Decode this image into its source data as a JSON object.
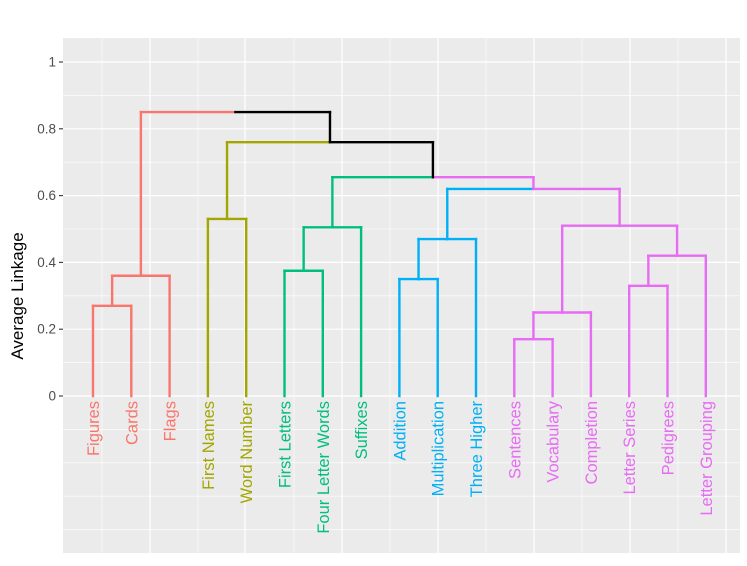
{
  "chart_data": {
    "type": "dendrogram",
    "title": "",
    "xlabel": "",
    "ylabel": "Average Linkage",
    "ylim": [
      -0.5,
      1.07
    ],
    "yticks": [
      0,
      0.2,
      0.4,
      0.6,
      0.8,
      1
    ],
    "ytick_labels": [
      "0",
      "0.2",
      "0.4",
      "0.6",
      "0.8",
      "1"
    ],
    "leaves": [
      {
        "label": "Figures",
        "cluster": 1
      },
      {
        "label": "Cards",
        "cluster": 1
      },
      {
        "label": "Flags",
        "cluster": 1
      },
      {
        "label": "First Names",
        "cluster": 2
      },
      {
        "label": "Word Number",
        "cluster": 2
      },
      {
        "label": "First Letters",
        "cluster": 3
      },
      {
        "label": "Four Letter Words",
        "cluster": 3
      },
      {
        "label": "Suffixes",
        "cluster": 3
      },
      {
        "label": "Addition",
        "cluster": 4
      },
      {
        "label": "Multiplication",
        "cluster": 4
      },
      {
        "label": "Three Higher",
        "cluster": 4
      },
      {
        "label": "Sentences",
        "cluster": 5
      },
      {
        "label": "Vocabulary",
        "cluster": 5
      },
      {
        "label": "Completion",
        "cluster": 5
      },
      {
        "label": "Letter Series",
        "cluster": 5
      },
      {
        "label": "Pedigrees",
        "cluster": 5
      },
      {
        "label": "Letter Grouping",
        "cluster": 5
      }
    ],
    "merges": [
      {
        "id": "m1",
        "left": 0,
        "right": 1,
        "height": 0.27,
        "cluster": 1
      },
      {
        "id": "m2",
        "left": "m1",
        "right": 2,
        "height": 0.36,
        "cluster": 1
      },
      {
        "id": "m3",
        "left": 3,
        "right": 4,
        "height": 0.53,
        "cluster": 2
      },
      {
        "id": "m4",
        "left": 5,
        "right": 6,
        "height": 0.375,
        "cluster": 3
      },
      {
        "id": "m5",
        "left": "m4",
        "right": 7,
        "height": 0.505,
        "cluster": 3
      },
      {
        "id": "m6",
        "left": 8,
        "right": 9,
        "height": 0.35,
        "cluster": 4
      },
      {
        "id": "m7",
        "left": "m6",
        "right": 10,
        "height": 0.47,
        "cluster": 4
      },
      {
        "id": "m8",
        "left": 11,
        "right": 12,
        "height": 0.17,
        "cluster": 5
      },
      {
        "id": "m9",
        "left": "m8",
        "right": 13,
        "height": 0.25,
        "cluster": 5
      },
      {
        "id": "m10",
        "left": 14,
        "right": 15,
        "height": 0.33,
        "cluster": 5
      },
      {
        "id": "m11",
        "left": "m10",
        "right": 16,
        "height": 0.42,
        "cluster": 5
      },
      {
        "id": "m12",
        "left": "m9",
        "right": "m11",
        "height": 0.51,
        "cluster": 5
      },
      {
        "id": "m13",
        "left": "m7",
        "right": "m12",
        "height": 0.62,
        "cluster": 5
      },
      {
        "id": "m14",
        "left": "m5",
        "right": "m13",
        "height": 0.655,
        "cluster": 0
      },
      {
        "id": "m15",
        "left": "m3",
        "right": "m14",
        "height": 0.76,
        "cluster": 0
      },
      {
        "id": "m16",
        "left": "m2",
        "right": "m15",
        "height": 0.85,
        "cluster": 0
      }
    ],
    "cluster_colors": {
      "0": "#000000",
      "1": "#F8766D",
      "2": "#A3A500",
      "3": "#00BF7D",
      "4": "#00B0F6",
      "5": "#E76BF3"
    },
    "panel_background": "#EBEBEB",
    "grid_color": "#FFFFFF"
  }
}
